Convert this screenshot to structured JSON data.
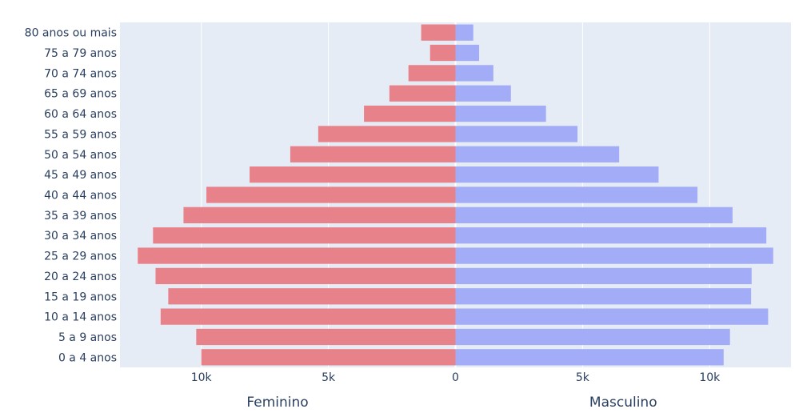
{
  "chart_data": {
    "type": "bar",
    "orientation": "horizontal",
    "layout": "population-pyramid",
    "categories": [
      "0 a 4 anos",
      "5 a 9 anos",
      "10 a 14 anos",
      "15 a 19 anos",
      "20 a 24 anos",
      "25 a 29 anos",
      "30 a 34 anos",
      "35 a 39 anos",
      "40 a 44 anos",
      "45 a 49 anos",
      "50 a 54 anos",
      "55 a 59 anos",
      "60 a 64 anos",
      "65 a 69 anos",
      "70 a 74 anos",
      "75 a 79 anos",
      "80 anos ou mais"
    ],
    "series": [
      {
        "name": "Feminino",
        "color": "#e8828a",
        "values": [
          -10000,
          -10200,
          -11600,
          -11300,
          -11800,
          -12500,
          -11900,
          -10700,
          -9800,
          -8100,
          -6500,
          -5400,
          -3600,
          -2600,
          -1850,
          -1000,
          -1350
        ]
      },
      {
        "name": "Masculino",
        "color": "#a3acf7",
        "values": [
          10550,
          10800,
          12300,
          11630,
          11650,
          12500,
          12230,
          10900,
          9520,
          7990,
          6440,
          4800,
          3560,
          2180,
          1490,
          930,
          700
        ]
      }
    ],
    "xlim": [
      -13200,
      13200
    ],
    "xticks": [
      {
        "value": -10000,
        "label": "10k"
      },
      {
        "value": -5000,
        "label": "5k"
      },
      {
        "value": 0,
        "label": "0"
      },
      {
        "value": 5000,
        "label": "5k"
      },
      {
        "value": 10000,
        "label": "10k"
      }
    ],
    "side_labels": {
      "left": "Feminino",
      "right": "Masculino"
    },
    "grid": true,
    "plot_background": "#e5ecf6"
  }
}
